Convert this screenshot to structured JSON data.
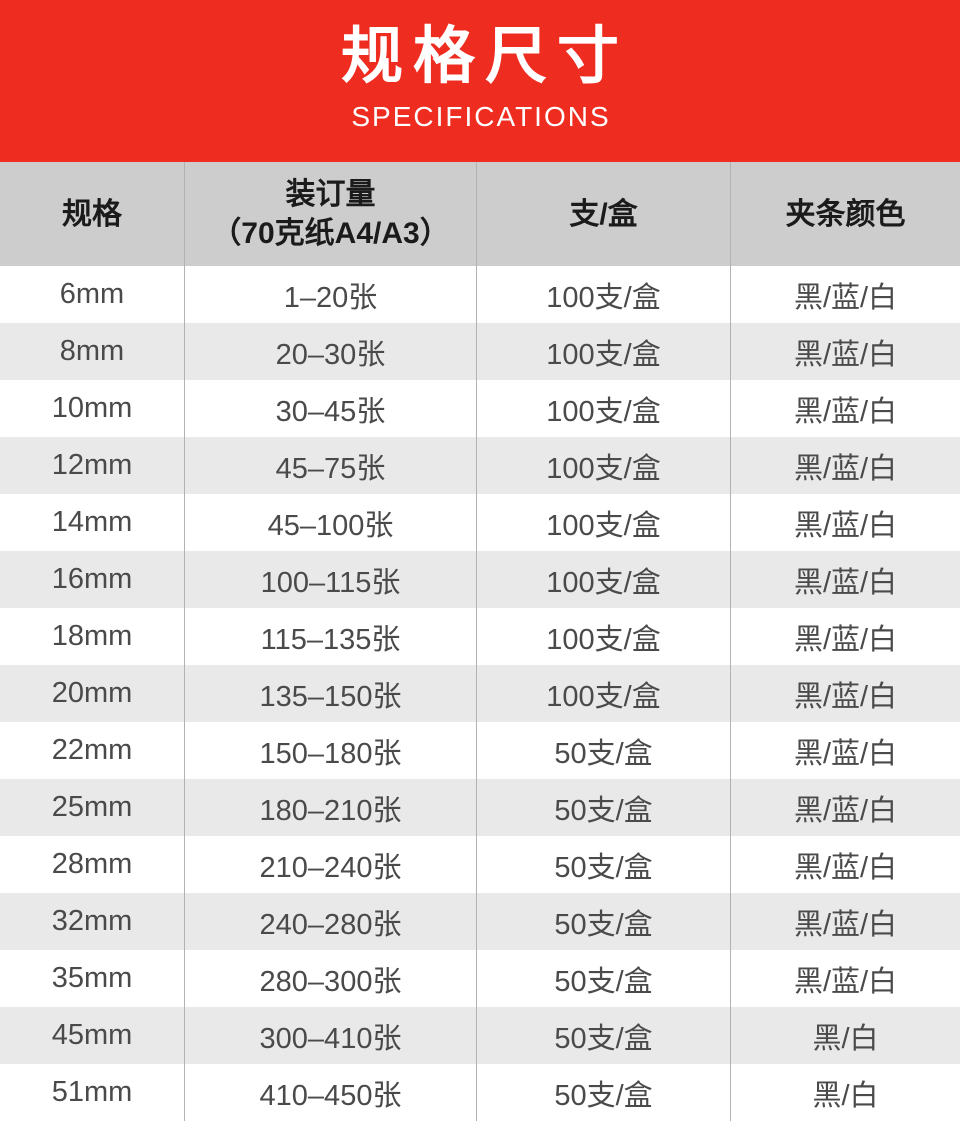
{
  "banner": {
    "title": "规格尺寸",
    "subtitle": "SPECIFICATIONS"
  },
  "table": {
    "headers": [
      {
        "lines": [
          "规格"
        ]
      },
      {
        "lines": [
          "装订量",
          "（70克纸A4/A3）"
        ]
      },
      {
        "lines": [
          "支/盒"
        ]
      },
      {
        "lines": [
          "夹条颜色"
        ]
      }
    ],
    "rows": [
      [
        "6mm",
        "1–20张",
        "100支/盒",
        "黑/蓝/白"
      ],
      [
        "8mm",
        "20–30张",
        "100支/盒",
        "黑/蓝/白"
      ],
      [
        "10mm",
        "30–45张",
        "100支/盒",
        "黑/蓝/白"
      ],
      [
        "12mm",
        "45–75张",
        "100支/盒",
        "黑/蓝/白"
      ],
      [
        "14mm",
        "45–100张",
        "100支/盒",
        "黑/蓝/白"
      ],
      [
        "16mm",
        "100–115张",
        "100支/盒",
        "黑/蓝/白"
      ],
      [
        "18mm",
        "115–135张",
        "100支/盒",
        "黑/蓝/白"
      ],
      [
        "20mm",
        "135–150张",
        "100支/盒",
        "黑/蓝/白"
      ],
      [
        "22mm",
        "150–180张",
        "50支/盒",
        "黑/蓝/白"
      ],
      [
        "25mm",
        "180–210张",
        "50支/盒",
        "黑/蓝/白"
      ],
      [
        "28mm",
        "210–240张",
        "50支/盒",
        "黑/蓝/白"
      ],
      [
        "32mm",
        "240–280张",
        "50支/盒",
        "黑/蓝/白"
      ],
      [
        "35mm",
        "280–300张",
        "50支/盒",
        "黑/蓝/白"
      ],
      [
        "45mm",
        "300–410张",
        "50支/盒",
        "黑/白"
      ],
      [
        "51mm",
        "410–450张",
        "50支/盒",
        "黑/白"
      ]
    ]
  },
  "colors": {
    "banner_red": "#ee2c20",
    "banner_text": "#ffffff",
    "header_bg": "#cdcdcd",
    "header_text": "#1b1b1b",
    "row_bg": "#ffffff",
    "row_alt_bg": "#e9e9e9",
    "body_text": "#4a4a4a",
    "divider": "#b2b2b2"
  }
}
